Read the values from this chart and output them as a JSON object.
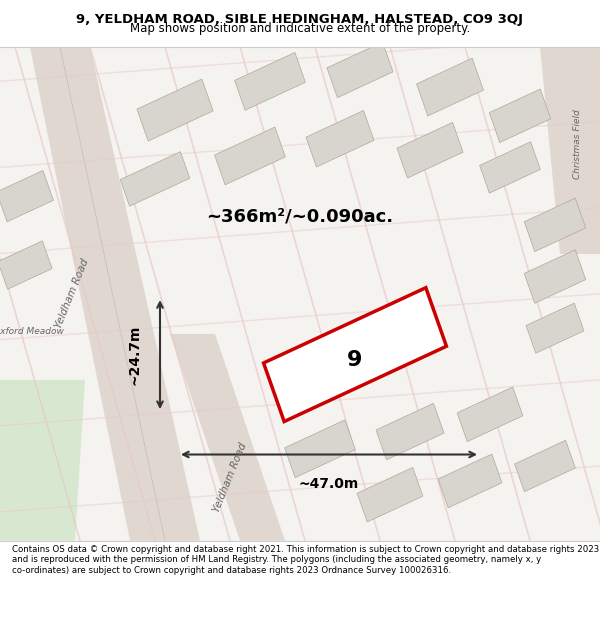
{
  "title_line1": "9, YELDHAM ROAD, SIBLE HEDINGHAM, HALSTEAD, CO9 3QJ",
  "title_line2": "Map shows position and indicative extent of the property.",
  "footer_text": "Contains OS data © Crown copyright and database right 2021. This information is subject to Crown copyright and database rights 2023 and is reproduced with the permission of HM Land Registry. The polygons (including the associated geometry, namely x, y co-ordinates) are subject to Crown copyright and database rights 2023 Ordnance Survey 100026316.",
  "area_text": "~366m²/~0.090ac.",
  "width_text": "~47.0m",
  "height_text": "~24.7m",
  "property_number": "9",
  "bg_color": "#f0ede8",
  "map_bg": "#f5f3f0",
  "road_color": "#e8c8c8",
  "building_color": "#d8d4ce",
  "red_outline": "#cc0000",
  "dark_line": "#333333",
  "title_bg": "#ffffff",
  "footer_bg": "#ffffff",
  "green_area": "#d8e8d0"
}
